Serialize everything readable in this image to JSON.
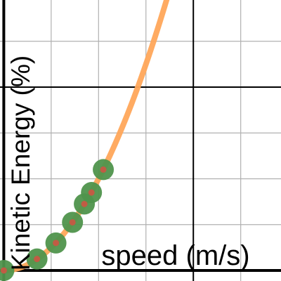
{
  "chart_data": {
    "type": "scatter",
    "xlabel": "speed (m/s)",
    "ylabel": "Kinetic Energy (%)",
    "xlim": [
      -0.08,
      5.85
    ],
    "ylim": [
      -0.23,
      5.9
    ],
    "grid": true,
    "colors": {
      "curve": "#ffa65a",
      "points": "#4f944c",
      "point_center": "#cc5544",
      "grid_minor": "#b0b0b0",
      "grid_major": "#000000",
      "axis": "#000000"
    },
    "series": [
      {
        "kind": "curve",
        "equation": "y = x^2 / 2",
        "x_range": [
          0,
          4
        ]
      },
      {
        "kind": "points",
        "points": [
          {
            "x": 0.0,
            "y": 0.0
          },
          {
            "x": 0.7,
            "y": 0.25
          },
          {
            "x": 1.1,
            "y": 0.6
          },
          {
            "x": 1.45,
            "y": 1.05
          },
          {
            "x": 1.7,
            "y": 1.45
          },
          {
            "x": 1.85,
            "y": 1.7
          },
          {
            "x": 2.1,
            "y": 2.2
          }
        ]
      }
    ]
  }
}
